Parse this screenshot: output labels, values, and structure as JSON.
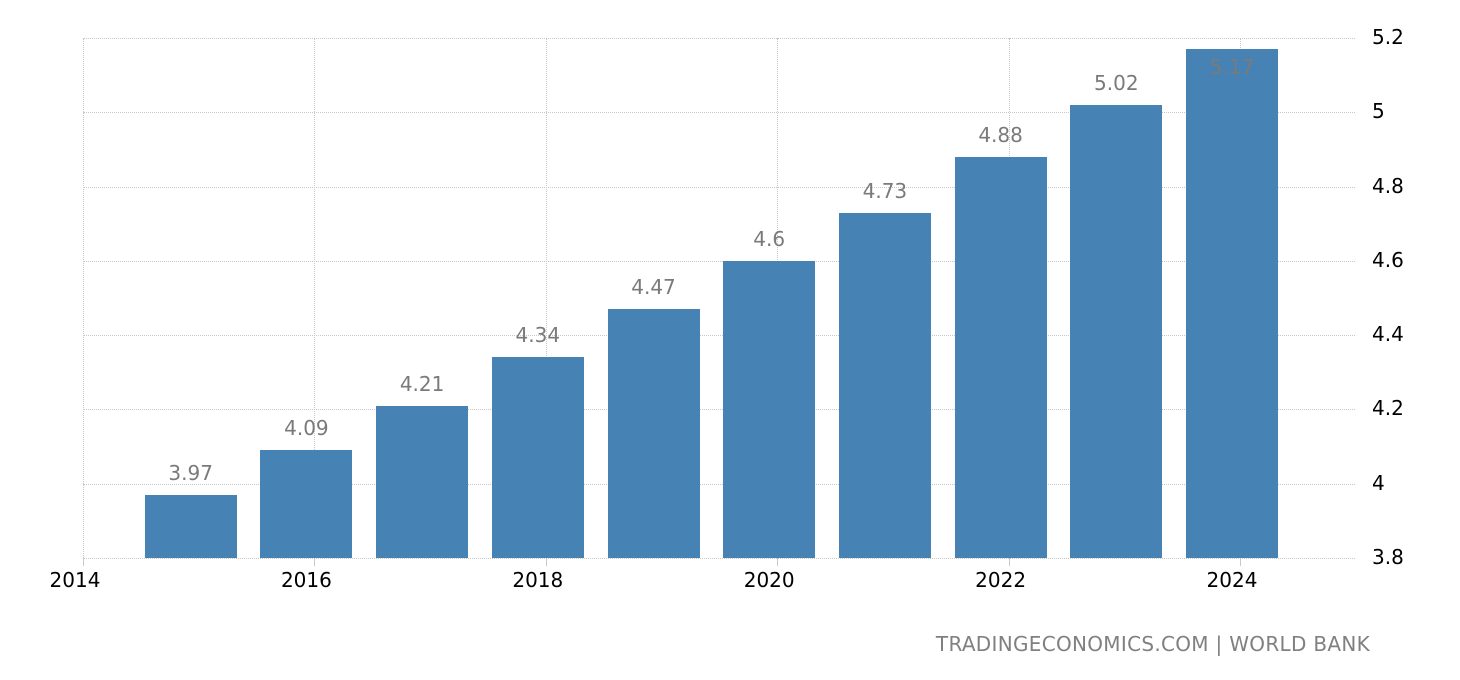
{
  "chart_data": {
    "type": "bar",
    "title": "",
    "xlabel": "",
    "ylabel": "",
    "categories": [
      "2015",
      "2016",
      "2017",
      "2018",
      "2019",
      "2020",
      "2021",
      "2022",
      "2023",
      "2024"
    ],
    "values": [
      3.97,
      4.09,
      4.21,
      4.34,
      4.47,
      4.6,
      4.73,
      4.88,
      5.02,
      5.17
    ],
    "data_labels": [
      "3.97",
      "4.09",
      "4.21",
      "4.34",
      "4.47",
      "4.6",
      "4.73",
      "4.88",
      "5.02",
      "5.17"
    ],
    "ylim": [
      3.8,
      5.2
    ],
    "yticks": [
      "5.2",
      "5",
      "4.8",
      "4.6",
      "4.4",
      "4.2",
      "4",
      "3.8"
    ],
    "ytick_values": [
      5.2,
      5.0,
      4.8,
      4.6,
      4.4,
      4.2,
      4.0,
      3.8
    ],
    "xticks": [
      "2014",
      "2016",
      "2018",
      "2020",
      "2022",
      "2024"
    ],
    "xtick_years": [
      2014,
      2016,
      2018,
      2020,
      2022,
      2024
    ],
    "yaxis_position": "right",
    "grid": true,
    "bar_color": "#4682b4",
    "label_color": "#7a7a7a"
  },
  "footer": {
    "source": "TRADINGECONOMICS.COM | WORLD BANK"
  }
}
